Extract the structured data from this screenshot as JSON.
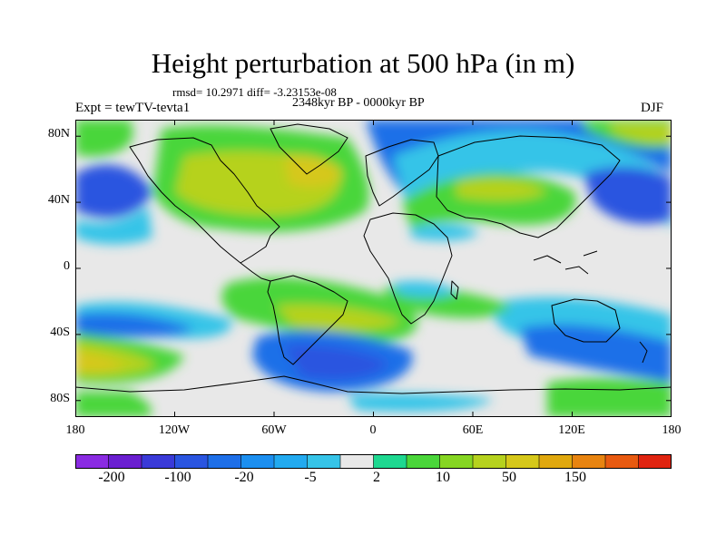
{
  "title": "Height perturbation at 500 hPa (in m)",
  "stats": "rmsd= 10.2971 diff= -3.23153e-08",
  "period": "2348kyr BP - 0000kyr BP",
  "experiment": "Expt = tewTV-tevta1",
  "season": "DJF",
  "lat_ticks": [
    "80N",
    "40N",
    "0",
    "40S",
    "80S"
  ],
  "lon_ticks": [
    "180",
    "120W",
    "60W",
    "0",
    "60E",
    "120E",
    "180"
  ],
  "colorbar": {
    "colors": [
      "#8a2be2",
      "#6a1fd0",
      "#3a3ad8",
      "#2a55e0",
      "#1e6fe8",
      "#1c8ff0",
      "#22aaf0",
      "#36c4e8",
      "#e8e8e8",
      "#1ed890",
      "#4ad63a",
      "#86d622",
      "#b6d21e",
      "#d6c81a",
      "#e0a80e",
      "#e88410",
      "#e85a10",
      "#e02410"
    ],
    "labels": [
      "-200",
      "-100",
      "-20",
      "-5",
      "2",
      "10",
      "50",
      "150"
    ]
  },
  "chart_data": {
    "type": "heatmap",
    "title": "Height perturbation at 500 hPa (in m)",
    "xlabel": "",
    "ylabel": "",
    "x_range": [
      -180,
      180
    ],
    "y_range": [
      -90,
      90
    ],
    "lon_ticks": [
      "180",
      "120W",
      "60W",
      "0",
      "60E",
      "120E",
      "180"
    ],
    "lat_ticks": [
      "80N",
      "40N",
      "0",
      "40S",
      "80S"
    ],
    "levels": [
      -200,
      -100,
      -20,
      -5,
      2,
      10,
      50,
      150
    ],
    "regions": [
      {
        "lon": -90,
        "lat": 55,
        "value": 30
      },
      {
        "lon": -45,
        "lat": 60,
        "value": 45
      },
      {
        "lon": -100,
        "lat": 40,
        "value": 15
      },
      {
        "lon": 60,
        "lat": 40,
        "value": 12
      },
      {
        "lon": 55,
        "lat": 70,
        "value": -35
      },
      {
        "lon": 120,
        "lat": 70,
        "value": -25
      },
      {
        "lon": 150,
        "lat": 40,
        "value": -30
      },
      {
        "lon": -165,
        "lat": 45,
        "value": -30
      },
      {
        "lon": -165,
        "lat": 70,
        "value": 10
      },
      {
        "lon": 165,
        "lat": 65,
        "value": 12
      },
      {
        "lon": 20,
        "lat": 10,
        "value": 0
      },
      {
        "lon": -60,
        "lat": -15,
        "value": 8
      },
      {
        "lon": -45,
        "lat": -40,
        "value": 15
      },
      {
        "lon": 40,
        "lat": -45,
        "value": 12
      },
      {
        "lon": -30,
        "lat": -65,
        "value": -25
      },
      {
        "lon": 110,
        "lat": -55,
        "value": -18
      },
      {
        "lon": -150,
        "lat": -40,
        "value": -8
      },
      {
        "lon": -160,
        "lat": -60,
        "value": 20
      },
      {
        "lon": 160,
        "lat": -80,
        "value": 12
      }
    ]
  }
}
